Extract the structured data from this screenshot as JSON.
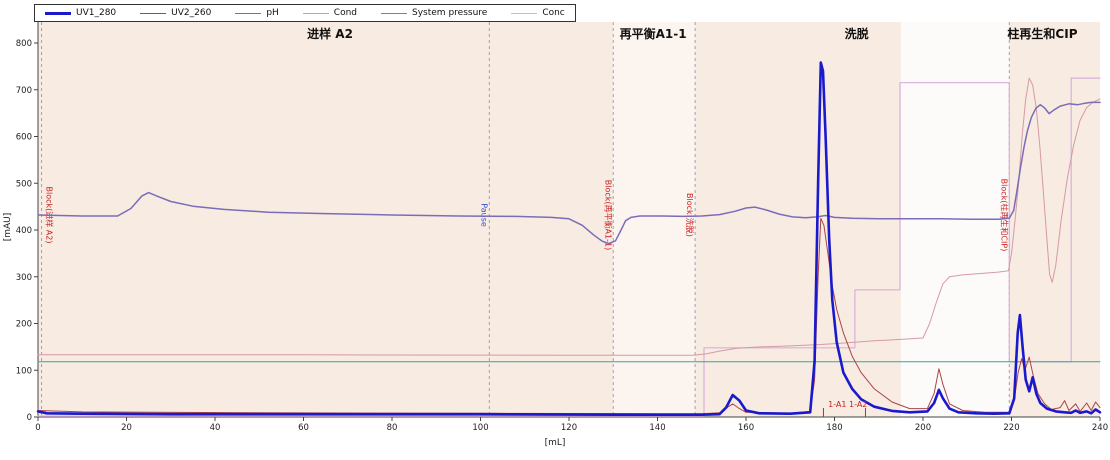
{
  "legend": {
    "items": [
      {
        "label": "UV1_280",
        "color": "#1a1acc",
        "weight": 3
      },
      {
        "label": "UV2_260",
        "color": "#aa4444",
        "weight": 1.5
      },
      {
        "label": "pH",
        "color": "#7b6cba",
        "weight": 1.5
      },
      {
        "label": "Cond",
        "color": "#d59aa6",
        "weight": 1.5
      },
      {
        "label": "System pressure",
        "color": "#2fa8a4",
        "weight": 1.5
      },
      {
        "label": "Conc",
        "color": "#d8b0dc",
        "weight": 1.5
      }
    ]
  },
  "chart_data": {
    "type": "line",
    "title": "",
    "xlabel": "[mL]",
    "ylabel": "[mAU]",
    "xlim": [
      0,
      240
    ],
    "ylim": [
      0,
      800
    ],
    "grid": false,
    "legend_position": "top-left",
    "x_ticks": [
      0,
      20,
      40,
      60,
      80,
      100,
      120,
      140,
      160,
      180,
      200,
      220,
      240
    ],
    "y_ticks": [
      0,
      100,
      200,
      300,
      400,
      500,
      600,
      700,
      800
    ],
    "phases": [
      {
        "label": "进样 A2",
        "start": 0,
        "end": 130,
        "label_x": 66
      },
      {
        "label": "再平衡A1-1",
        "start": 130,
        "end": 148.5,
        "label_x": 139
      },
      {
        "label": "洗脱",
        "start": 148.5,
        "end": 219.5,
        "label_x": 185
      },
      {
        "label": "柱再生和CIP",
        "start": 219.5,
        "end": 240,
        "label_x": 227
      }
    ],
    "bands": [
      {
        "from": 0,
        "to": 130,
        "color": "#f7ebe2"
      },
      {
        "from": 130,
        "to": 148.5,
        "color": "#fcf4ee"
      },
      {
        "from": 148.5,
        "to": 195,
        "color": "#f7ebe2"
      },
      {
        "from": 195,
        "to": 219.5,
        "color": "#fdfbf9"
      },
      {
        "from": 219.5,
        "to": 240,
        "color": "#f7ebe2"
      }
    ],
    "markers": [
      {
        "x": 0.8,
        "label": "Block(进样 A2)",
        "color": "#cc2222"
      },
      {
        "x": 102,
        "label": "Pause",
        "color": "#3a50c8"
      },
      {
        "x": 130,
        "label": "Block(再平衡A1-1)",
        "color": "#cc2222"
      },
      {
        "x": 148.5,
        "label": "Block(洗脱)",
        "color": "#cc2222"
      },
      {
        "x": 219.5,
        "label": "Block(柱再生和CIP)",
        "color": "#cc2222"
      }
    ],
    "fractions": {
      "label": "1-A1 1-A2",
      "label_x": 183,
      "ticks": [
        177.5,
        187
      ],
      "color": "#cc2222"
    },
    "series": [
      {
        "name": "Conc",
        "color": "#d8b0dc",
        "width": 1.2,
        "points": [
          [
            0,
            2
          ],
          [
            150.5,
            2
          ],
          [
            150.5,
            148
          ],
          [
            184.6,
            148
          ],
          [
            184.6,
            272
          ],
          [
            194.8,
            272
          ],
          [
            194.8,
            715
          ],
          [
            219.5,
            715
          ],
          [
            219.5,
            118
          ],
          [
            233.5,
            118
          ],
          [
            233.5,
            725
          ],
          [
            240,
            725
          ]
        ]
      },
      {
        "name": "Cond",
        "color": "#d59aa6",
        "width": 1,
        "points": [
          [
            0,
            133
          ],
          [
            60,
            133
          ],
          [
            120,
            132
          ],
          [
            148,
            132
          ],
          [
            151,
            135
          ],
          [
            154,
            141
          ],
          [
            158,
            147
          ],
          [
            163,
            150
          ],
          [
            170,
            152
          ],
          [
            177,
            155
          ],
          [
            183,
            159
          ],
          [
            189,
            163
          ],
          [
            195,
            166
          ],
          [
            200,
            169
          ],
          [
            201.5,
            200
          ],
          [
            203,
            245
          ],
          [
            204.5,
            285
          ],
          [
            206,
            300
          ],
          [
            209,
            304
          ],
          [
            213,
            307
          ],
          [
            217,
            310
          ],
          [
            219.3,
            313
          ],
          [
            220,
            350
          ],
          [
            220.8,
            420
          ],
          [
            221.6,
            500
          ],
          [
            222.4,
            600
          ],
          [
            223.2,
            680
          ],
          [
            224,
            725
          ],
          [
            224.8,
            710
          ],
          [
            225.6,
            660
          ],
          [
            226.4,
            580
          ],
          [
            227.2,
            480
          ],
          [
            228,
            380
          ],
          [
            228.6,
            305
          ],
          [
            229.2,
            288
          ],
          [
            230,
            325
          ],
          [
            231.2,
            420
          ],
          [
            232.6,
            510
          ],
          [
            234,
            580
          ],
          [
            235.5,
            635
          ],
          [
            237,
            662
          ],
          [
            238.5,
            674
          ],
          [
            240,
            680
          ]
        ]
      },
      {
        "name": "System pressure",
        "color": "#2fa8a4",
        "width": 1,
        "points": [
          [
            0,
            118
          ],
          [
            40,
            118
          ],
          [
            80,
            118
          ],
          [
            120,
            118
          ],
          [
            160,
            118
          ],
          [
            200,
            118
          ],
          [
            240,
            118
          ]
        ]
      },
      {
        "name": "pH",
        "color": "#7b6cba",
        "width": 1.5,
        "points": [
          [
            0,
            432
          ],
          [
            10,
            430
          ],
          [
            18,
            430
          ],
          [
            21,
            446
          ],
          [
            23.5,
            473
          ],
          [
            25,
            480
          ],
          [
            27,
            472
          ],
          [
            30,
            461
          ],
          [
            35,
            451
          ],
          [
            42,
            444
          ],
          [
            52,
            438
          ],
          [
            65,
            435
          ],
          [
            80,
            432
          ],
          [
            95,
            430
          ],
          [
            108,
            429
          ],
          [
            116,
            427
          ],
          [
            120,
            424
          ],
          [
            123,
            410
          ],
          [
            125.5,
            390
          ],
          [
            127.5,
            376
          ],
          [
            129,
            371
          ],
          [
            130.5,
            377
          ],
          [
            131.7,
            399
          ],
          [
            132.8,
            420
          ],
          [
            134,
            427
          ],
          [
            136,
            430
          ],
          [
            141,
            430
          ],
          [
            146,
            429
          ],
          [
            150,
            430
          ],
          [
            154,
            433
          ],
          [
            157.5,
            440
          ],
          [
            160,
            447
          ],
          [
            162,
            449
          ],
          [
            164.5,
            443
          ],
          [
            167.5,
            434
          ],
          [
            170.5,
            428
          ],
          [
            173.5,
            426
          ],
          [
            176,
            428
          ],
          [
            178,
            431
          ],
          [
            180,
            427
          ],
          [
            184,
            425
          ],
          [
            190,
            424
          ],
          [
            197,
            424
          ],
          [
            204,
            424
          ],
          [
            211,
            423
          ],
          [
            217,
            423
          ],
          [
            219.5,
            425
          ],
          [
            220.5,
            442
          ],
          [
            221.2,
            482
          ],
          [
            222,
            532
          ],
          [
            222.8,
            576
          ],
          [
            223.6,
            612
          ],
          [
            224.5,
            641
          ],
          [
            225.5,
            660
          ],
          [
            226.5,
            668
          ],
          [
            227.5,
            661
          ],
          [
            228.5,
            649
          ],
          [
            229.5,
            656
          ],
          [
            231,
            665
          ],
          [
            233,
            670
          ],
          [
            235,
            668
          ],
          [
            236.5,
            671
          ],
          [
            238,
            673
          ],
          [
            240,
            673
          ]
        ]
      },
      {
        "name": "UV2_260",
        "color": "#aa4444",
        "width": 1,
        "points": [
          [
            0,
            14
          ],
          [
            10,
            11
          ],
          [
            50,
            9
          ],
          [
            100,
            8
          ],
          [
            140,
            7
          ],
          [
            150,
            7
          ],
          [
            154,
            9
          ],
          [
            156,
            22
          ],
          [
            157,
            28
          ],
          [
            158.5,
            18
          ],
          [
            160,
            10
          ],
          [
            170,
            8
          ],
          [
            174.5,
            12
          ],
          [
            175.5,
            80
          ],
          [
            176.3,
            300
          ],
          [
            176.9,
            425
          ],
          [
            177.6,
            410
          ],
          [
            178.5,
            350
          ],
          [
            179.5,
            280
          ],
          [
            180.5,
            230
          ],
          [
            182,
            180
          ],
          [
            184,
            130
          ],
          [
            186,
            95
          ],
          [
            189,
            60
          ],
          [
            193,
            32
          ],
          [
            197,
            18
          ],
          [
            201,
            18
          ],
          [
            202.5,
            50
          ],
          [
            203.6,
            103
          ],
          [
            204.5,
            70
          ],
          [
            206,
            28
          ],
          [
            209,
            14
          ],
          [
            214,
            10
          ],
          [
            219.5,
            10
          ],
          [
            220.6,
            35
          ],
          [
            221.5,
            95
          ],
          [
            222.3,
            125
          ],
          [
            223,
            100
          ],
          [
            224,
            128
          ],
          [
            225,
            85
          ],
          [
            226,
            50
          ],
          [
            227.5,
            28
          ],
          [
            229,
            16
          ],
          [
            231,
            20
          ],
          [
            232,
            35
          ],
          [
            233,
            14
          ],
          [
            234.5,
            28
          ],
          [
            235.5,
            12
          ],
          [
            237,
            30
          ],
          [
            238,
            14
          ],
          [
            239,
            32
          ],
          [
            240,
            20
          ]
        ]
      },
      {
        "name": "UV1_280",
        "color": "#1a1acc",
        "width": 2.6,
        "points": [
          [
            0,
            12
          ],
          [
            2,
            8
          ],
          [
            10,
            7
          ],
          [
            30,
            6
          ],
          [
            60,
            6
          ],
          [
            100,
            6
          ],
          [
            130,
            5
          ],
          [
            150,
            5
          ],
          [
            154,
            6
          ],
          [
            155.5,
            20
          ],
          [
            157,
            47
          ],
          [
            158.5,
            35
          ],
          [
            160,
            14
          ],
          [
            163,
            8
          ],
          [
            170,
            7
          ],
          [
            174.5,
            10
          ],
          [
            175.5,
            120
          ],
          [
            176.3,
            500
          ],
          [
            176.9,
            758
          ],
          [
            177.4,
            740
          ],
          [
            178,
            600
          ],
          [
            178.8,
            380
          ],
          [
            179.5,
            250
          ],
          [
            180.5,
            160
          ],
          [
            182,
            95
          ],
          [
            184,
            60
          ],
          [
            186,
            38
          ],
          [
            189,
            22
          ],
          [
            193,
            13
          ],
          [
            197,
            10
          ],
          [
            201,
            12
          ],
          [
            202.5,
            30
          ],
          [
            203.6,
            58
          ],
          [
            204.5,
            40
          ],
          [
            206,
            18
          ],
          [
            208,
            10
          ],
          [
            212,
            8
          ],
          [
            216,
            7
          ],
          [
            219.5,
            8
          ],
          [
            220.6,
            40
          ],
          [
            221.4,
            180
          ],
          [
            221.9,
            218
          ],
          [
            222.5,
            150
          ],
          [
            223.2,
            80
          ],
          [
            224,
            55
          ],
          [
            224.8,
            85
          ],
          [
            225.6,
            50
          ],
          [
            226.5,
            30
          ],
          [
            228,
            18
          ],
          [
            230,
            12
          ],
          [
            232,
            10
          ],
          [
            233.5,
            9
          ],
          [
            234.5,
            14
          ],
          [
            235.5,
            9
          ],
          [
            237,
            12
          ],
          [
            238,
            8
          ],
          [
            239,
            16
          ],
          [
            240,
            10
          ]
        ]
      }
    ]
  }
}
